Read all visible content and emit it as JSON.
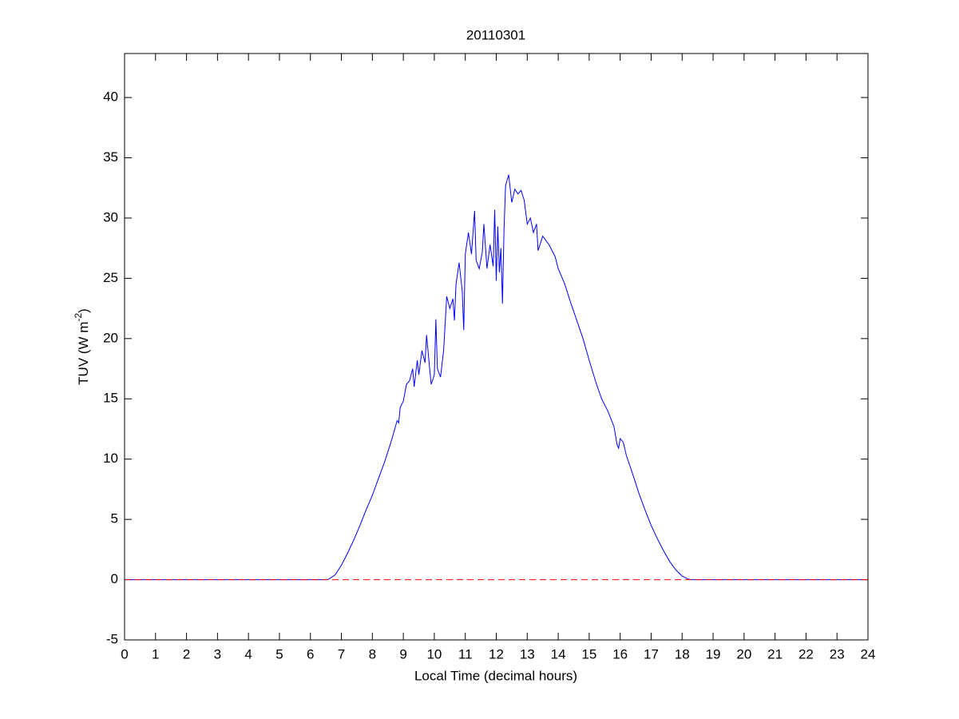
{
  "chart_data": {
    "type": "line",
    "title": "20110301",
    "x_label": "Local Time (decimal hours)",
    "y_label": [
      "TUV (W m",
      "-2",
      ")"
    ],
    "xlim": [
      0,
      24
    ],
    "ylim": [
      -5,
      43.65
    ],
    "xticks": [
      0,
      1,
      2,
      3,
      4,
      5,
      6,
      7,
      8,
      9,
      10,
      11,
      12,
      13,
      14,
      15,
      16,
      17,
      18,
      19,
      20,
      21,
      22,
      23,
      24
    ],
    "yticks": [
      -5,
      0,
      5,
      10,
      15,
      20,
      25,
      30,
      35,
      40
    ],
    "box": true,
    "series": [
      {
        "color": "#0000ff",
        "style": "solid",
        "x": [
          0,
          6.5,
          6.6,
          6.8,
          7.0,
          7.2,
          7.4,
          7.6,
          7.8,
          8.0,
          8.2,
          8.4,
          8.6,
          8.8,
          8.85,
          8.9,
          9.0,
          9.1,
          9.2,
          9.3,
          9.35,
          9.45,
          9.5,
          9.6,
          9.7,
          9.75,
          9.85,
          9.9,
          10.0,
          10.05,
          10.1,
          10.2,
          10.3,
          10.4,
          10.5,
          10.6,
          10.65,
          10.7,
          10.8,
          10.9,
          10.95,
          11.0,
          11.1,
          11.2,
          11.3,
          11.35,
          11.45,
          11.55,
          11.6,
          11.7,
          11.8,
          11.9,
          11.95,
          12.0,
          12.05,
          12.1,
          12.15,
          12.2,
          12.25,
          12.3,
          12.4,
          12.5,
          12.6,
          12.7,
          12.8,
          12.9,
          13.0,
          13.1,
          13.2,
          13.3,
          13.35,
          13.5,
          13.7,
          13.9,
          14.0,
          14.2,
          14.4,
          14.6,
          14.8,
          15.0,
          15.2,
          15.4,
          15.6,
          15.8,
          15.9,
          15.95,
          16.0,
          16.1,
          16.2,
          16.4,
          16.6,
          16.8,
          17.0,
          17.2,
          17.4,
          17.6,
          17.8,
          18.0,
          18.2,
          18.3,
          24
        ],
        "values": [
          0,
          0,
          0.05,
          0.4,
          1.2,
          2.2,
          3.3,
          4.5,
          5.8,
          7.0,
          8.4,
          9.8,
          11.4,
          13.2,
          13.0,
          14.3,
          14.8,
          16.2,
          16.5,
          17.5,
          16.0,
          18.2,
          17.0,
          19.0,
          18.0,
          20.3,
          17.5,
          16.2,
          17.0,
          21.6,
          17.5,
          16.8,
          19.0,
          23.5,
          22.5,
          23.3,
          21.5,
          24.5,
          26.3,
          24.0,
          20.7,
          27.0,
          28.8,
          27.0,
          30.6,
          26.5,
          25.8,
          27.2,
          29.5,
          25.8,
          27.8,
          26.0,
          30.7,
          24.8,
          29.3,
          25.5,
          27.5,
          22.9,
          29.0,
          32.7,
          33.6,
          31.3,
          32.4,
          32.0,
          32.3,
          31.5,
          29.5,
          30.0,
          28.8,
          29.5,
          27.3,
          28.5,
          27.8,
          26.8,
          25.8,
          24.6,
          23.0,
          21.5,
          20.0,
          18.2,
          16.5,
          15.0,
          14.0,
          12.7,
          11.2,
          10.9,
          11.7,
          11.4,
          10.3,
          8.8,
          7.2,
          5.8,
          4.5,
          3.4,
          2.4,
          1.5,
          0.8,
          0.3,
          0.05,
          0,
          0
        ]
      },
      {
        "color": "#ff0000",
        "style": "dashed",
        "x": [
          0,
          24
        ],
        "values": [
          0,
          0
        ]
      }
    ]
  }
}
